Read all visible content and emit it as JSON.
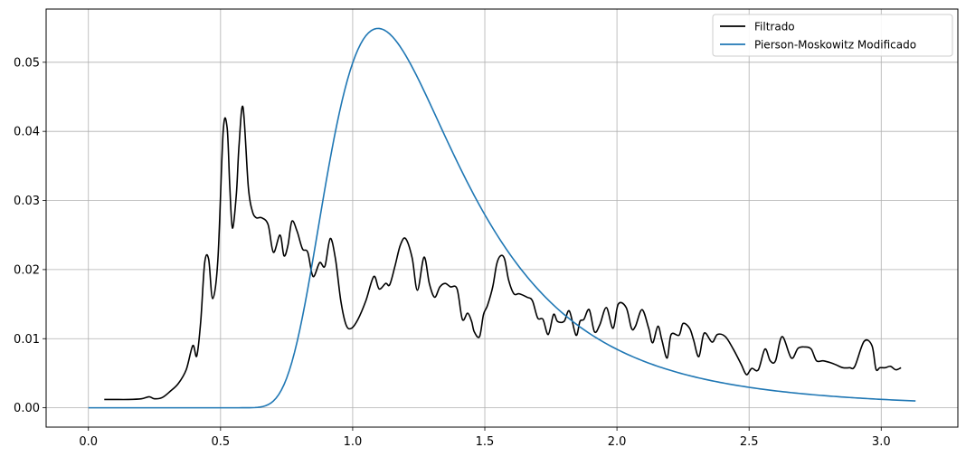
{
  "chart_data": {
    "type": "line",
    "title": "",
    "xlabel": "",
    "ylabel": "",
    "xlim": [
      -0.16,
      3.29
    ],
    "ylim": [
      -0.0028,
      0.0577
    ],
    "grid": true,
    "legend_placement": "top-right",
    "xticks": [
      0.0,
      0.5,
      1.0,
      1.5,
      2.0,
      2.5,
      3.0
    ],
    "xtick_labels": [
      "0.0",
      "0.5",
      "1.0",
      "1.5",
      "2.0",
      "2.5",
      "3.0"
    ],
    "yticks": [
      0.0,
      0.01,
      0.02,
      0.03,
      0.04,
      0.05
    ],
    "ytick_labels": [
      "0.00",
      "0.01",
      "0.02",
      "0.03",
      "0.04",
      "0.05"
    ],
    "series": [
      {
        "name": "Filtrado",
        "color": "#000000",
        "x": [
          0.06,
          0.1,
          0.15,
          0.2,
          0.23,
          0.25,
          0.28,
          0.31,
          0.34,
          0.37,
          0.395,
          0.41,
          0.425,
          0.44,
          0.455,
          0.47,
          0.49,
          0.51,
          0.525,
          0.535,
          0.545,
          0.56,
          0.57,
          0.585,
          0.605,
          0.62,
          0.635,
          0.655,
          0.68,
          0.7,
          0.725,
          0.74,
          0.755,
          0.77,
          0.79,
          0.81,
          0.83,
          0.85,
          0.875,
          0.895,
          0.915,
          0.935,
          0.955,
          0.975,
          0.995,
          1.02,
          1.05,
          1.08,
          1.1,
          1.125,
          1.14,
          1.16,
          1.18,
          1.2,
          1.225,
          1.245,
          1.27,
          1.29,
          1.31,
          1.33,
          1.35,
          1.37,
          1.395,
          1.415,
          1.435,
          1.45,
          1.46,
          1.48,
          1.495,
          1.51,
          1.53,
          1.545,
          1.56,
          1.575,
          1.59,
          1.61,
          1.63,
          1.66,
          1.68,
          1.7,
          1.72,
          1.74,
          1.76,
          1.775,
          1.8,
          1.82,
          1.845,
          1.86,
          1.875,
          1.895,
          1.915,
          1.935,
          1.96,
          1.985,
          2.005,
          2.035,
          2.055,
          2.07,
          2.095,
          2.12,
          2.135,
          2.155,
          2.17,
          2.19,
          2.205,
          2.235,
          2.25,
          2.275,
          2.29,
          2.31,
          2.33,
          2.36,
          2.38,
          2.41,
          2.44,
          2.47,
          2.49,
          2.51,
          2.535,
          2.56,
          2.58,
          2.6,
          2.625,
          2.66,
          2.685,
          2.71,
          2.735,
          2.755,
          2.78,
          2.81,
          2.83,
          2.855,
          2.88,
          2.9,
          2.935,
          2.965,
          2.98,
          2.995,
          3.015,
          3.035,
          3.055,
          3.075
        ],
        "y": [
          0.0012,
          0.0012,
          0.0012,
          0.0013,
          0.0016,
          0.0013,
          0.0015,
          0.0024,
          0.0035,
          0.0055,
          0.009,
          0.0075,
          0.0125,
          0.021,
          0.0215,
          0.0158,
          0.0215,
          0.04,
          0.0405,
          0.032,
          0.026,
          0.031,
          0.038,
          0.0435,
          0.032,
          0.0285,
          0.0275,
          0.0275,
          0.0265,
          0.0225,
          0.025,
          0.022,
          0.0235,
          0.027,
          0.0255,
          0.023,
          0.0225,
          0.019,
          0.021,
          0.0205,
          0.0245,
          0.0215,
          0.0155,
          0.012,
          0.0115,
          0.0128,
          0.0155,
          0.019,
          0.0172,
          0.018,
          0.0178,
          0.0205,
          0.0235,
          0.0245,
          0.0217,
          0.017,
          0.0218,
          0.018,
          0.016,
          0.0175,
          0.018,
          0.0175,
          0.0172,
          0.0128,
          0.0137,
          0.0125,
          0.011,
          0.0103,
          0.0135,
          0.0148,
          0.0175,
          0.0208,
          0.022,
          0.0215,
          0.0185,
          0.0165,
          0.0165,
          0.016,
          0.0155,
          0.013,
          0.0128,
          0.0106,
          0.0135,
          0.0125,
          0.0125,
          0.014,
          0.0105,
          0.0125,
          0.0128,
          0.0142,
          0.011,
          0.012,
          0.0145,
          0.0115,
          0.015,
          0.0145,
          0.0115,
          0.0118,
          0.0142,
          0.0115,
          0.0094,
          0.0118,
          0.0098,
          0.0072,
          0.0106,
          0.0105,
          0.0122,
          0.0115,
          0.0098,
          0.0074,
          0.0108,
          0.0095,
          0.0106,
          0.0103,
          0.0085,
          0.0063,
          0.0048,
          0.0057,
          0.0055,
          0.0085,
          0.0068,
          0.0068,
          0.0103,
          0.0072,
          0.0086,
          0.0088,
          0.0085,
          0.0068,
          0.0068,
          0.0065,
          0.0062,
          0.0058,
          0.0058,
          0.006,
          0.0096,
          0.009,
          0.0056,
          0.0058,
          0.0058,
          0.006,
          0.0055,
          0.0058
        ],
        "y_note_removed": null
      },
      {
        "name": "Pierson-Moskowitz Modificado",
        "color": "#1f77b4",
        "model": {
          "peak_x": 1.096,
          "peak_y": 0.0549,
          "x_start": 0.0,
          "x_end": 3.13
        }
      }
    ]
  }
}
